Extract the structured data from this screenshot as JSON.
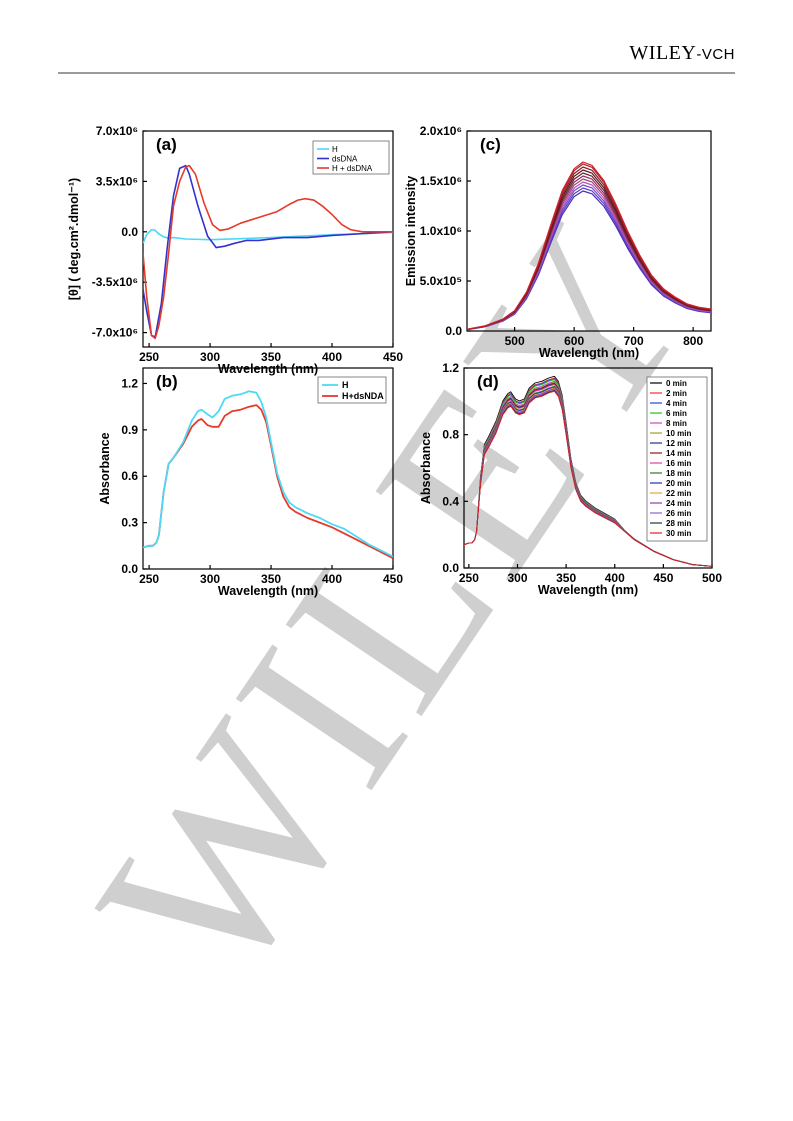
{
  "header": {
    "brand": "WILEY",
    "brand_suffix": "-VCH"
  },
  "watermark": "WILEY",
  "chart_data": [
    {
      "id": "a",
      "type": "line",
      "panel_label": "(a)",
      "xlabel": "Wavelength (nm)",
      "ylabel": "[θ] ( deg.cm².dmol⁻¹)",
      "xlim": [
        245,
        450
      ],
      "ylim": [
        -8000000,
        7000000
      ],
      "xticks": [
        250,
        300,
        350,
        400,
        450
      ],
      "yticks": [
        -7000000,
        -3500000,
        0,
        3500000,
        7000000
      ],
      "ytick_labels": [
        "-7.0x10⁶",
        "-3.5x10⁶",
        "0.0",
        "3.5x10⁶",
        "7.0x10⁶"
      ],
      "legend_placement": "top-right",
      "series": [
        {
          "name": "H",
          "color": "#4dd9f5",
          "x": [
            245,
            248,
            252,
            255,
            258,
            262,
            266,
            270,
            280,
            300,
            350,
            400,
            450
          ],
          "y": [
            -800000,
            -200000,
            150000,
            100000,
            -150000,
            -350000,
            -450000,
            -400000,
            -500000,
            -550000,
            -400000,
            -200000,
            -50000
          ]
        },
        {
          "name": "dsDNA",
          "color": "#3333cc",
          "x": [
            245,
            248,
            252,
            255,
            260,
            265,
            270,
            275,
            280,
            283,
            290,
            298,
            305,
            312,
            320,
            330,
            340,
            360,
            380,
            400,
            420,
            440,
            450
          ],
          "y": [
            -4000000,
            -5500000,
            -7200000,
            -7300000,
            -5000000,
            -1000000,
            2500000,
            4400000,
            4600000,
            4000000,
            1800000,
            -300000,
            -1100000,
            -1000000,
            -800000,
            -600000,
            -600000,
            -400000,
            -400000,
            -250000,
            -150000,
            -50000,
            0
          ]
        },
        {
          "name": "H + dsDNA",
          "color": "#e63a2a",
          "x": [
            245,
            248,
            252,
            255,
            258,
            262,
            266,
            270,
            275,
            280,
            283,
            288,
            295,
            302,
            308,
            315,
            325,
            340,
            355,
            365,
            372,
            378,
            385,
            392,
            400,
            408,
            415,
            425,
            440,
            450
          ],
          "y": [
            -1500000,
            -4500000,
            -7200000,
            -7400000,
            -6500000,
            -4500000,
            -1500000,
            1800000,
            3500000,
            4500000,
            4600000,
            4000000,
            2000000,
            500000,
            100000,
            200000,
            600000,
            1000000,
            1400000,
            1900000,
            2200000,
            2300000,
            2200000,
            1800000,
            1200000,
            500000,
            150000,
            0,
            0,
            0
          ]
        }
      ]
    },
    {
      "id": "b",
      "type": "line",
      "panel_label": "(b)",
      "xlabel": "Wavelength (nm)",
      "ylabel": "Absorbance",
      "xlim": [
        245,
        450
      ],
      "ylim": [
        0,
        1.3
      ],
      "xticks": [
        250,
        300,
        350,
        400,
        450
      ],
      "yticks": [
        0.0,
        0.3,
        0.6,
        0.9,
        1.2
      ],
      "ytick_labels": [
        "0.0",
        "0.3",
        "0.6",
        "0.9",
        "1.2"
      ],
      "legend_placement": "top-right",
      "series": [
        {
          "name": "H",
          "color": "#4dd9f5",
          "x": [
            245,
            250,
            253,
            256,
            258,
            262,
            266,
            270,
            278,
            285,
            290,
            293,
            298,
            302,
            307,
            312,
            318,
            325,
            332,
            338,
            342,
            346,
            350,
            355,
            360,
            365,
            370,
            380,
            390,
            400,
            410,
            420,
            430,
            440,
            450
          ],
          "y": [
            0.14,
            0.15,
            0.15,
            0.17,
            0.22,
            0.5,
            0.68,
            0.72,
            0.82,
            0.96,
            1.02,
            1.03,
            1.0,
            0.98,
            1.02,
            1.1,
            1.12,
            1.13,
            1.15,
            1.14,
            1.08,
            0.98,
            0.82,
            0.62,
            0.5,
            0.43,
            0.4,
            0.36,
            0.33,
            0.29,
            0.26,
            0.21,
            0.16,
            0.12,
            0.08
          ]
        },
        {
          "name": "H+dsNDA",
          "color": "#e63a2a",
          "x": [
            245,
            250,
            253,
            256,
            258,
            262,
            266,
            270,
            278,
            285,
            290,
            293,
            298,
            302,
            307,
            312,
            318,
            325,
            332,
            338,
            342,
            346,
            350,
            355,
            360,
            365,
            370,
            380,
            390,
            400,
            410,
            420,
            430,
            440,
            450
          ],
          "y": [
            0.14,
            0.15,
            0.15,
            0.17,
            0.22,
            0.5,
            0.68,
            0.72,
            0.81,
            0.92,
            0.96,
            0.97,
            0.93,
            0.92,
            0.92,
            0.99,
            1.02,
            1.03,
            1.05,
            1.06,
            1.03,
            0.95,
            0.8,
            0.6,
            0.47,
            0.4,
            0.37,
            0.33,
            0.3,
            0.27,
            0.23,
            0.19,
            0.15,
            0.11,
            0.07
          ]
        }
      ]
    },
    {
      "id": "c",
      "type": "line",
      "panel_label": "(c)",
      "xlabel": "Wavelength (nm)",
      "ylabel": "Emission intensity",
      "xlim": [
        420,
        830
      ],
      "ylim": [
        0,
        2000000
      ],
      "xticks": [
        500,
        600,
        700,
        800
      ],
      "yticks": [
        0,
        500000,
        1000000,
        1500000,
        2000000
      ],
      "ytick_labels": [
        "0.0",
        "5.0x10⁵",
        "1.0x10⁶",
        "1.5x10⁶",
        "2.0x10⁶"
      ],
      "x": [
        420,
        450,
        480,
        500,
        520,
        540,
        560,
        580,
        600,
        615,
        630,
        650,
        670,
        690,
        710,
        730,
        750,
        770,
        790,
        810,
        830
      ],
      "profile": [
        0.01,
        0.03,
        0.07,
        0.12,
        0.23,
        0.4,
        0.62,
        0.83,
        0.96,
        1.0,
        0.98,
        0.89,
        0.75,
        0.59,
        0.45,
        0.33,
        0.25,
        0.2,
        0.16,
        0.14,
        0.13
      ],
      "series_peaks": [
        1400000,
        1430000,
        1460000,
        1490000,
        1520000,
        1550000,
        1580000,
        1610000,
        1640000,
        1670000,
        1690000
      ],
      "series_colors": [
        "#4a2ab8",
        "#5a3ec8",
        "#6b4ad0",
        "#c050b8",
        "#a04878",
        "#8a3060",
        "#6a2030",
        "#5a1a1a",
        "#8a1a2a",
        "#b0202a",
        "#d0202a"
      ]
    },
    {
      "id": "d",
      "type": "line",
      "panel_label": "(d)",
      "xlabel": "Wavelength (nm)",
      "ylabel": "Absorbance",
      "xlim": [
        245,
        500
      ],
      "ylim": [
        0,
        1.2
      ],
      "xticks": [
        250,
        300,
        350,
        400,
        450,
        500
      ],
      "yticks": [
        0.0,
        0.4,
        0.8,
        1.2
      ],
      "ytick_labels": [
        "0.0",
        "0.4",
        "0.8",
        "1.2"
      ],
      "legend_placement": "top-right",
      "x": [
        245,
        250,
        253,
        256,
        258,
        262,
        266,
        270,
        278,
        285,
        290,
        293,
        298,
        302,
        307,
        312,
        318,
        325,
        332,
        338,
        342,
        346,
        350,
        355,
        360,
        365,
        370,
        380,
        390,
        400,
        410,
        420,
        440,
        460,
        480,
        500
      ],
      "base": [
        0.14,
        0.15,
        0.15,
        0.17,
        0.22,
        0.5,
        0.68,
        0.72,
        0.81,
        0.92,
        0.96,
        0.97,
        0.93,
        0.92,
        0.93,
        0.99,
        1.02,
        1.03,
        1.05,
        1.06,
        1.03,
        0.95,
        0.8,
        0.6,
        0.47,
        0.4,
        0.37,
        0.33,
        0.3,
        0.27,
        0.22,
        0.17,
        0.1,
        0.05,
        0.02,
        0.01
      ],
      "series": [
        {
          "name": "0 min",
          "color": "#000000",
          "offset": 0.09
        },
        {
          "name": "2 min",
          "color": "#e8303a",
          "offset": 0.08
        },
        {
          "name": "4 min",
          "color": "#3040e0",
          "offset": 0.075
        },
        {
          "name": "6 min",
          "color": "#20c020",
          "offset": 0.07
        },
        {
          "name": "8 min",
          "color": "#d040d0",
          "offset": 0.06
        },
        {
          "name": "10 min",
          "color": "#a0a020",
          "offset": 0.055
        },
        {
          "name": "12 min",
          "color": "#2030a0",
          "offset": 0.05
        },
        {
          "name": "14 min",
          "color": "#8a1a1a",
          "offset": 0.045
        },
        {
          "name": "16 min",
          "color": "#e040a0",
          "offset": 0.04
        },
        {
          "name": "18 min",
          "color": "#208020",
          "offset": 0.03
        },
        {
          "name": "20 min",
          "color": "#2a2ab0",
          "offset": 0.025
        },
        {
          "name": "22 min",
          "color": "#f0a030",
          "offset": 0.02
        },
        {
          "name": "24 min",
          "color": "#8040c0",
          "offset": 0.015
        },
        {
          "name": "26 min",
          "color": "#9060d0",
          "offset": 0.01
        },
        {
          "name": "28 min",
          "color": "#303030",
          "offset": 0.005
        },
        {
          "name": "30 min",
          "color": "#e02020",
          "offset": 0.0
        }
      ]
    }
  ]
}
